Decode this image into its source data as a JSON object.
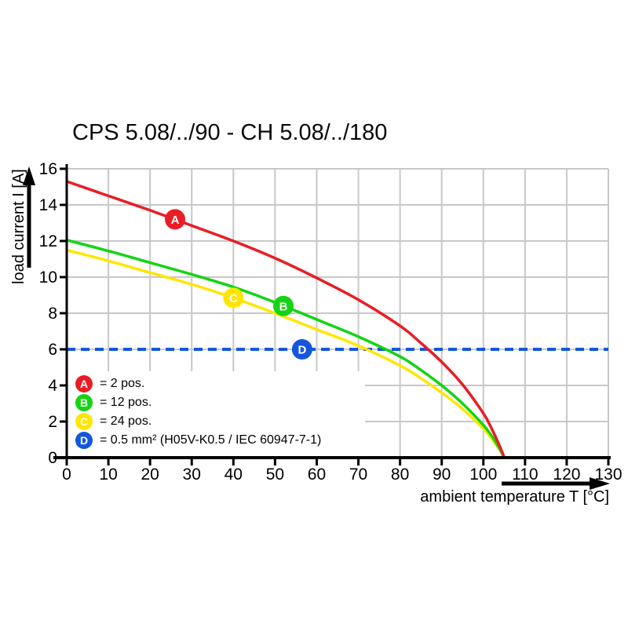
{
  "title": "CPS 5.08/../90 - CH 5.08/../180",
  "y_axis_label": "load current I [A]",
  "x_axis_label": "ambient temperature T [°C]",
  "colors": {
    "red": "#ea1c24",
    "green": "#14d414",
    "yellow": "#ffe600",
    "blue": "#1457dc",
    "grid": "#c8c8c8",
    "axis": "#000000",
    "text": "#000000",
    "background": "#ffffff"
  },
  "legend": {
    "items": [
      {
        "letter": "A",
        "color": "#ea1c24",
        "label": "= 2 pos."
      },
      {
        "letter": "B",
        "color": "#14d414",
        "label": "= 12 pos."
      },
      {
        "letter": "C",
        "color": "#ffe600",
        "label": "= 24 pos."
      },
      {
        "letter": "D",
        "color": "#1457dc",
        "label": "= 0.5 mm² (H05V-K0.5 / IEC 60947-7-1)"
      }
    ]
  },
  "chart_data": {
    "type": "line",
    "title": "CPS 5.08/../90 - CH 5.08/../180",
    "xlabel": "ambient temperature T [°C]",
    "ylabel": "load current I [A]",
    "xlim": [
      0,
      130
    ],
    "ylim": [
      0,
      16
    ],
    "x_ticks": [
      0,
      10,
      20,
      30,
      40,
      50,
      60,
      70,
      80,
      90,
      100,
      110,
      120,
      130
    ],
    "y_ticks": [
      0,
      2,
      4,
      6,
      8,
      10,
      12,
      14,
      16
    ],
    "grid": true,
    "legend_position": "lower-left",
    "series": [
      {
        "name": "A = 2 pos.",
        "color": "#ea1c24",
        "style": "solid",
        "points": [
          [
            0,
            15.3
          ],
          [
            10,
            14.5
          ],
          [
            20,
            13.7
          ],
          [
            30,
            12.85
          ],
          [
            40,
            12.0
          ],
          [
            50,
            11.05
          ],
          [
            60,
            9.95
          ],
          [
            70,
            8.75
          ],
          [
            80,
            7.3
          ],
          [
            85,
            6.35
          ],
          [
            90,
            5.3
          ],
          [
            95,
            4.05
          ],
          [
            100,
            2.45
          ],
          [
            102,
            1.6
          ],
          [
            104,
            0.6
          ],
          [
            105,
            0
          ]
        ]
      },
      {
        "name": "B = 12 pos.",
        "color": "#14d414",
        "style": "solid",
        "points": [
          [
            0,
            12.05
          ],
          [
            10,
            11.45
          ],
          [
            20,
            10.8
          ],
          [
            30,
            10.15
          ],
          [
            40,
            9.45
          ],
          [
            50,
            8.6
          ],
          [
            60,
            7.65
          ],
          [
            70,
            6.7
          ],
          [
            80,
            5.6
          ],
          [
            85,
            4.85
          ],
          [
            90,
            4.0
          ],
          [
            95,
            3.0
          ],
          [
            100,
            1.8
          ],
          [
            102,
            1.2
          ],
          [
            104,
            0.45
          ],
          [
            105,
            0
          ]
        ]
      },
      {
        "name": "C = 24 pos.",
        "color": "#ffe600",
        "style": "solid",
        "points": [
          [
            0,
            11.5
          ],
          [
            10,
            10.9
          ],
          [
            20,
            10.25
          ],
          [
            30,
            9.6
          ],
          [
            40,
            8.85
          ],
          [
            50,
            8.0
          ],
          [
            60,
            7.1
          ],
          [
            70,
            6.2
          ],
          [
            80,
            5.1
          ],
          [
            85,
            4.4
          ],
          [
            90,
            3.6
          ],
          [
            95,
            2.7
          ],
          [
            100,
            1.6
          ],
          [
            102,
            1.05
          ],
          [
            104,
            0.4
          ],
          [
            105,
            0
          ]
        ]
      },
      {
        "name": "D = 0.5 mm² (H05V-K0.5 / IEC 60947-7-1)",
        "color": "#1457dc",
        "style": "dashed",
        "points": [
          [
            0,
            6
          ],
          [
            130,
            6
          ]
        ]
      }
    ],
    "markers": [
      {
        "label": "A",
        "x": 26,
        "y": 13.2,
        "color": "#ea1c24"
      },
      {
        "label": "B",
        "x": 52,
        "y": 8.4,
        "color": "#14d414"
      },
      {
        "label": "C",
        "x": 40,
        "y": 8.85,
        "color": "#ffe600"
      },
      {
        "label": "D",
        "x": 56.5,
        "y": 6.0,
        "color": "#1457dc"
      }
    ]
  }
}
